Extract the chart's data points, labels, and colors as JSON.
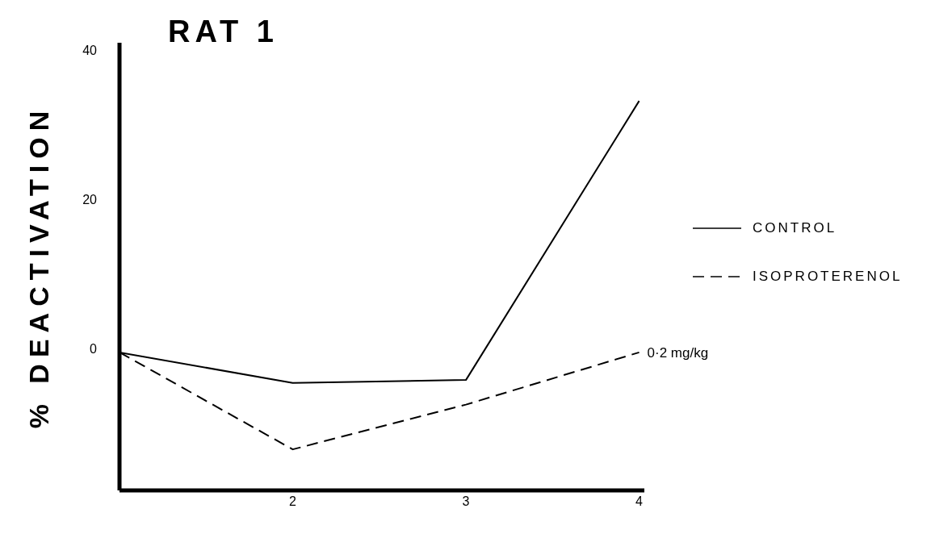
{
  "chart_data": {
    "type": "line",
    "title": "RAT 1",
    "ylabel": "% DEACTIVATION",
    "x": [
      1,
      2,
      3,
      4
    ],
    "series": [
      {
        "name": "CONTROL",
        "color": "#000000",
        "line_style": "solid",
        "values": [
          -0.5,
          -4.6,
          -4.2,
          33.2
        ]
      },
      {
        "name": "ISOPROTERENOL",
        "color": "#000000",
        "line_style": "dashed",
        "values": [
          -0.5,
          -13.5,
          -7.5,
          -0.5
        ]
      }
    ],
    "xlim": [
      1,
      4.03
    ],
    "xticks": [
      2,
      3,
      4
    ],
    "ylim": [
      -19,
      41
    ],
    "yticks": [
      0,
      20,
      40
    ],
    "annotations": [
      {
        "text": "0·2 mg/kg",
        "x": 4,
        "y": -0.5
      }
    ],
    "legend": "right",
    "marker": "none",
    "grid": false
  }
}
